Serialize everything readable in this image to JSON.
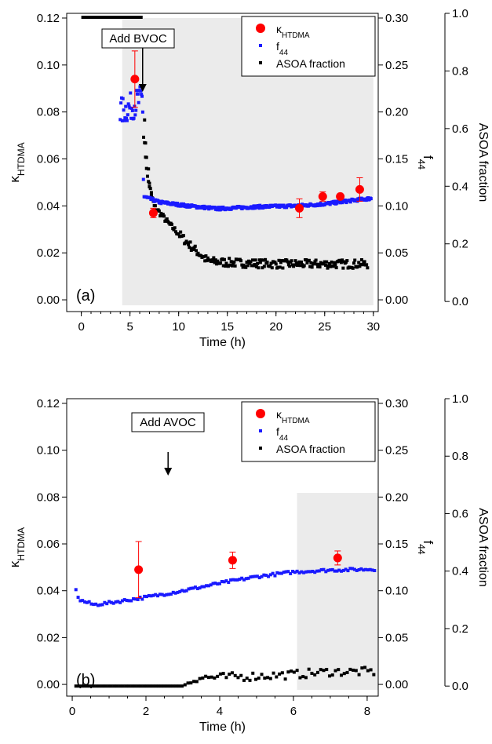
{
  "chart_data": [
    {
      "type": "scatter",
      "panel_label": "(a)",
      "xlabel": "Time  (h)",
      "xlim": [
        -1.5,
        30.5
      ],
      "xticks": [
        "0",
        "5",
        "10",
        "15",
        "20",
        "25",
        "30"
      ],
      "ylabel_left_main": "κ",
      "ylabel_left_sub": "HTDMA",
      "ylim_left": [
        -0.005,
        0.122
      ],
      "yticks_left": [
        "0.00",
        "0.02",
        "0.04",
        "0.06",
        "0.08",
        "0.10",
        "0.12"
      ],
      "ylabel_mid_main": "f",
      "ylabel_mid_sub": "44",
      "ylim_mid": [
        -0.0125,
        0.305
      ],
      "yticks_mid": [
        "0.00",
        "0.05",
        "0.10",
        "0.15",
        "0.20",
        "0.25",
        "0.30"
      ],
      "ylabel_right": "ASOA fraction",
      "ylim_right": [
        -0.035,
        1.0
      ],
      "yticks_right": [
        "0.0",
        "0.2",
        "0.4",
        "0.6",
        "0.8",
        "1.0"
      ],
      "shaded_region": [
        4.2,
        30
      ],
      "top_bar": [
        0,
        6.3
      ],
      "annotation": {
        "text": "Add BVOC",
        "x": 6.3
      },
      "legend": {
        "position": "top-right",
        "entries": [
          {
            "main": "κ",
            "sub": "HTDMA",
            "marker": "circle",
            "color": "#ff0000"
          },
          {
            "main": "f",
            "sub": "44",
            "marker": "square",
            "color": "#1a1aff"
          },
          {
            "main": "ASOA fraction",
            "sub": "",
            "marker": "square",
            "color": "#000000"
          }
        ]
      },
      "kappa": [
        {
          "x": 5.5,
          "y": 0.094,
          "err": 0.012
        },
        {
          "x": 7.4,
          "y": 0.037,
          "err": 0.002
        },
        {
          "x": 22.4,
          "y": 0.039,
          "err": 0.004
        },
        {
          "x": 24.8,
          "y": 0.044,
          "err": 0.002
        },
        {
          "x": 26.6,
          "y": 0.044,
          "err": 0.001
        },
        {
          "x": 28.6,
          "y": 0.047,
          "err": 0.005
        }
      ],
      "f44_knots": [
        [
          4.0,
          0.2
        ],
        [
          5.0,
          0.205
        ],
        [
          6.3,
          0.215
        ],
        [
          6.4,
          0.11
        ],
        [
          8,
          0.104
        ],
        [
          11,
          0.1
        ],
        [
          14,
          0.097
        ],
        [
          18,
          0.099
        ],
        [
          22,
          0.1
        ],
        [
          25,
          0.102
        ],
        [
          28,
          0.106
        ],
        [
          29.8,
          0.108
        ]
      ],
      "asoa_knots": [
        [
          6.4,
          0.58
        ],
        [
          6.8,
          0.43
        ],
        [
          7.5,
          0.33
        ],
        [
          9,
          0.27
        ],
        [
          11,
          0.2
        ],
        [
          13,
          0.14
        ],
        [
          15,
          0.135
        ],
        [
          20,
          0.13
        ],
        [
          25,
          0.13
        ],
        [
          29.5,
          0.13
        ]
      ],
      "colors": {
        "f44": "#1a1aff",
        "asoa": "#000000",
        "kappa": "#ff0000",
        "shade": "#ebebeb"
      }
    },
    {
      "type": "scatter",
      "panel_label": "(b)",
      "xlabel": "Time (h)",
      "xlim": [
        -0.15,
        8.3
      ],
      "xticks": [
        "0",
        "2",
        "4",
        "6",
        "8"
      ],
      "ylabel_left_main": "κ",
      "ylabel_left_sub": "HTDMA",
      "ylim_left": [
        -0.005,
        0.122
      ],
      "yticks_left": [
        "0.00",
        "0.02",
        "0.04",
        "0.06",
        "0.08",
        "0.10",
        "0.12"
      ],
      "ylabel_mid_main": "f",
      "ylabel_mid_sub": "44",
      "ylim_mid": [
        -0.0125,
        0.305
      ],
      "yticks_mid": [
        "0.00",
        "0.05",
        "0.10",
        "0.15",
        "0.20",
        "0.25",
        "0.30"
      ],
      "ylabel_right": "ASOA fraction",
      "ylim_right": [
        -0.035,
        1.0
      ],
      "yticks_right": [
        "0.0",
        "0.2",
        "0.4",
        "0.6",
        "0.8",
        "1.0"
      ],
      "shaded_region": [
        6.1,
        8.3
      ],
      "annotation": {
        "text": "Add AVOC",
        "x": 2.6
      },
      "legend": {
        "position": "top-right",
        "entries": [
          {
            "main": "κ",
            "sub": "HTDMA",
            "marker": "circle",
            "color": "#ff0000"
          },
          {
            "main": "f",
            "sub": "44",
            "marker": "square",
            "color": "#1a1aff"
          },
          {
            "main": "ASOA fraction",
            "sub": "",
            "marker": "square",
            "color": "#000000"
          }
        ]
      },
      "kappa": [
        {
          "x": 1.8,
          "y": 0.049,
          "err": 0.012
        },
        {
          "x": 4.35,
          "y": 0.053,
          "err": 0.0035
        },
        {
          "x": 7.2,
          "y": 0.054,
          "err": 0.003
        }
      ],
      "f44_knots": [
        [
          0.1,
          0.1
        ],
        [
          0.2,
          0.09
        ],
        [
          0.6,
          0.085
        ],
        [
          1.0,
          0.087
        ],
        [
          2,
          0.093
        ],
        [
          3,
          0.1
        ],
        [
          4,
          0.108
        ],
        [
          5,
          0.115
        ],
        [
          6,
          0.12
        ],
        [
          7,
          0.122
        ],
        [
          8.2,
          0.123
        ]
      ],
      "asoa_knots": [
        [
          0.1,
          0.0
        ],
        [
          3.0,
          0.0
        ],
        [
          3.4,
          0.03
        ],
        [
          4.0,
          0.03
        ],
        [
          5,
          0.035
        ],
        [
          6,
          0.04
        ],
        [
          7,
          0.05
        ],
        [
          8.2,
          0.05
        ]
      ],
      "colors": {
        "f44": "#1a1aff",
        "asoa": "#000000",
        "kappa": "#ff0000",
        "shade": "#ebebeb"
      }
    }
  ]
}
